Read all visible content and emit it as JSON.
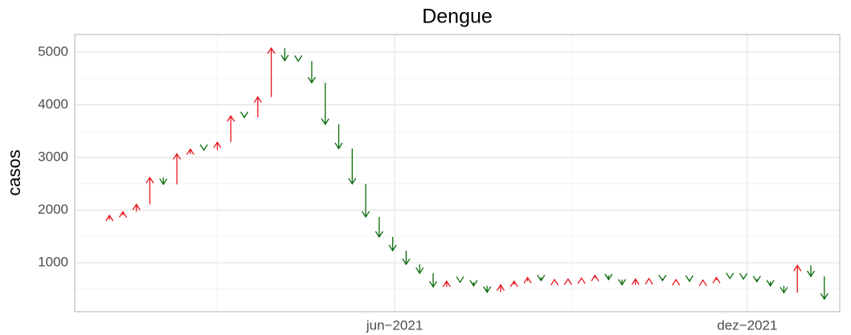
{
  "chart_data": {
    "type": "arrow",
    "title": "Dengue",
    "y_label": "casos",
    "up_color": "#e8141c",
    "down_color": "#0b6b0b",
    "start": 1820,
    "x": [
      "2021-01-04",
      "2021-01-11",
      "2021-01-18",
      "2021-01-25",
      "2021-02-01",
      "2021-02-08",
      "2021-02-15",
      "2021-02-22",
      "2021-03-01",
      "2021-03-08",
      "2021-03-15",
      "2021-03-22",
      "2021-03-29",
      "2021-04-05",
      "2021-04-12",
      "2021-04-19",
      "2021-04-26",
      "2021-05-03",
      "2021-05-10",
      "2021-05-17",
      "2021-05-24",
      "2021-05-31",
      "2021-06-07",
      "2021-06-14",
      "2021-06-21",
      "2021-06-28",
      "2021-07-05",
      "2021-07-12",
      "2021-07-19",
      "2021-07-26",
      "2021-08-02",
      "2021-08-09",
      "2021-08-16",
      "2021-08-23",
      "2021-08-30",
      "2021-09-06",
      "2021-09-13",
      "2021-09-20",
      "2021-09-27",
      "2021-10-04",
      "2021-10-11",
      "2021-10-18",
      "2021-10-25",
      "2021-11-01",
      "2021-11-08",
      "2021-11-15",
      "2021-11-22",
      "2021-11-29",
      "2021-12-06",
      "2021-12-13",
      "2021-12-20",
      "2021-12-27",
      "2022-01-03",
      "2022-01-10"
    ],
    "values": [
      1900,
      1970,
      2110,
      2620,
      2490,
      3070,
      3160,
      3140,
      3290,
      3790,
      3760,
      4150,
      5080,
      4840,
      4830,
      4420,
      3630,
      3170,
      2500,
      1870,
      1490,
      1230,
      970,
      800,
      540,
      650,
      630,
      560,
      440,
      580,
      650,
      720,
      660,
      680,
      690,
      710,
      760,
      680,
      580,
      690,
      700,
      660,
      680,
      650,
      670,
      720,
      700,
      690,
      640,
      560,
      430,
      950,
      740,
      310
    ],
    "xlim": [
      "2020-12-17",
      "2022-01-18"
    ],
    "xticks": [
      {
        "value": "2021-06-01",
        "label": "jun−2021"
      },
      {
        "value": "2021-12-01",
        "label": "dez−2021"
      }
    ],
    "xminorticks": [
      "2021-03-01",
      "2021-09-01"
    ],
    "ylim": [
      70,
      5336
    ],
    "yticks": [
      1000,
      2000,
      3000,
      4000,
      5000
    ],
    "yminorticks": [
      500,
      1500,
      2500,
      3500,
      4500
    ],
    "grid": true
  }
}
